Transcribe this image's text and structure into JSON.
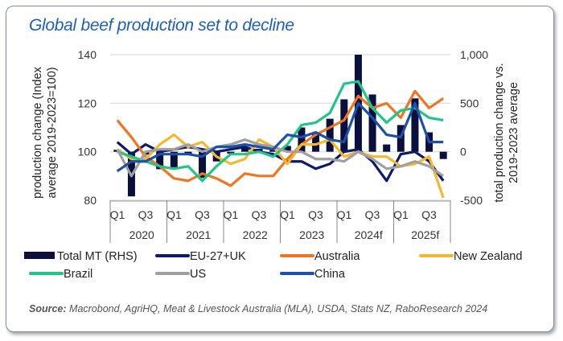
{
  "chart_data": {
    "type": "bar+line",
    "title": "Global beef production set to decline",
    "ylabel": "production change (Index average 2019-2023=100)",
    "ylabel_right": "total production change vs. 2019-2023 average",
    "ylim": [
      80,
      140
    ],
    "yticks": [
      80,
      100,
      120,
      140
    ],
    "ylim_right": [
      -500,
      1000
    ],
    "yticks_right": [
      "-500",
      "0",
      "500",
      "1,000"
    ],
    "grid": true,
    "legend_position": "bottom",
    "years": [
      "2020",
      "2021",
      "2022",
      "2023",
      "2024f",
      "2025f"
    ],
    "quarter_labels": [
      "Q1",
      "Q3"
    ],
    "bar_series": {
      "name": "Total MT (RHS)",
      "color": "#0a0f3c",
      "axis": "right",
      "values": [
        20,
        -460,
        -30,
        -180,
        -160,
        -20,
        -270,
        -100,
        -20,
        50,
        30,
        20,
        60,
        250,
        190,
        340,
        540,
        1000,
        590,
        75,
        275,
        550,
        200,
        -75
      ]
    },
    "series": [
      {
        "name": "EU-27+UK",
        "color": "#0d1a6b",
        "values": [
          104,
          99,
          103,
          100,
          101,
          102,
          101,
          100,
          101,
          102,
          100,
          99,
          96,
          96,
          93,
          95,
          100,
          101,
          96,
          88,
          99,
          100,
          96,
          88
        ]
      },
      {
        "name": "Australia",
        "color": "#f07422",
        "values": [
          113,
          106,
          98,
          94,
          89,
          88,
          91,
          89,
          86,
          91,
          90,
          90,
          97,
          103,
          107,
          110,
          113,
          123,
          118,
          120,
          114,
          125,
          118,
          122
        ]
      },
      {
        "name": "New Zealand",
        "color": "#f5b731",
        "values": [
          101,
          97,
          97,
          103,
          107,
          102,
          104,
          98,
          95,
          97,
          105,
          102,
          95,
          103,
          103,
          105,
          98,
          100,
          98,
          98,
          94,
          95,
          98,
          81
        ]
      },
      {
        "name": "Brazil",
        "color": "#22c488",
        "values": [
          100,
          98,
          96,
          94,
          93,
          94,
          88,
          94,
          99,
          99,
          100,
          98,
          103,
          111,
          112,
          116,
          128,
          129,
          118,
          112,
          117,
          118,
          114,
          113
        ]
      },
      {
        "name": "US",
        "color": "#a0a0a0",
        "values": [
          101,
          90,
          100,
          101,
          101,
          103,
          100,
          102,
          103,
          105,
          103,
          102,
          100,
          100,
          97,
          97,
          96,
          100,
          97,
          93,
          94,
          96,
          94,
          90
        ]
      },
      {
        "name": "China",
        "color": "#1f50a8",
        "values": [
          92,
          96,
          96,
          99,
          99,
          99,
          98,
          102,
          102,
          103,
          102,
          101,
          107,
          106,
          108,
          105,
          104,
          120,
          114,
          107,
          106,
          120,
          104,
          104
        ]
      }
    ]
  },
  "source_label": "Source:",
  "source_text": "Macrobond, AgriHQ, Meat & Livestock Australia (MLA), USDA, Stats NZ, RaboResearch 2024"
}
